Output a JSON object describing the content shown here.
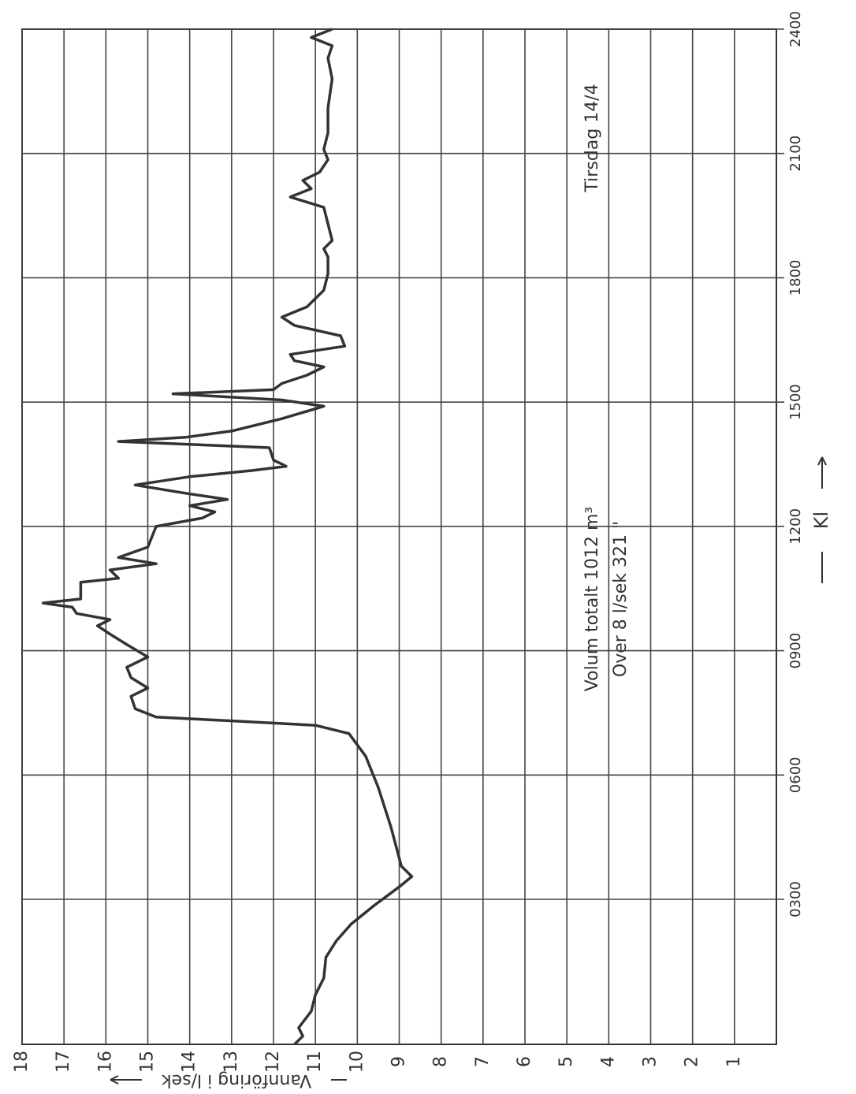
{
  "chart_data": {
    "type": "line",
    "axis_label": "Vannföring i l/sek",
    "time_label": "Kl",
    "annotations": [
      "Volum totalt 1012 m³",
      "Over 8 l/sek 321 \"",
      "Tirsdag 14/4"
    ],
    "xlim": [
      -0.5,
      24
    ],
    "xticks": [
      {
        "value": 3,
        "label": "0300"
      },
      {
        "value": 6,
        "label": "0600"
      },
      {
        "value": 9,
        "label": "0900"
      },
      {
        "value": 12,
        "label": "1200"
      },
      {
        "value": 15,
        "label": "1500"
      },
      {
        "value": 18,
        "label": "1800"
      },
      {
        "value": 21,
        "label": "2100"
      },
      {
        "value": 24,
        "label": "2400"
      }
    ],
    "ylim": [
      0,
      18
    ],
    "yticks": [
      1,
      2,
      3,
      4,
      5,
      6,
      7,
      8,
      9,
      10,
      11,
      12,
      13,
      14,
      15,
      16,
      17,
      18
    ],
    "grid": true,
    "color": "#333333",
    "x": [
      -0.5,
      -0.3,
      -0.1,
      0.3,
      0.7,
      1.1,
      1.6,
      2.0,
      2.4,
      2.85,
      3.3,
      3.55,
      3.8,
      4.75,
      5.7,
      6.45,
      7.0,
      7.2,
      7.3,
      7.4,
      7.6,
      7.9,
      8.1,
      8.35,
      8.6,
      8.85,
      9.15,
      9.4,
      9.6,
      9.75,
      9.9,
      10.05,
      10.15,
      10.25,
      10.4,
      10.65,
      10.75,
      10.95,
      11.1,
      11.25,
      11.5,
      11.75,
      12.0,
      12.2,
      12.35,
      12.5,
      12.65,
      12.8,
      13.0,
      13.2,
      13.35,
      13.45,
      13.6,
      13.9,
      14.05,
      14.15,
      14.3,
      14.6,
      14.9,
      15.05,
      15.2,
      15.3,
      15.45,
      15.65,
      15.85,
      16.0,
      16.15,
      16.35,
      16.6,
      16.85,
      17.05,
      17.3,
      17.7,
      18.1,
      18.5,
      18.7,
      18.9,
      19.3,
      19.7,
      19.95,
      20.15,
      20.35,
      20.55,
      20.85,
      21.1,
      21.5,
      22.1,
      22.8,
      23.3,
      23.6,
      23.8,
      24.0
    ],
    "values": [
      11.5,
      11.3,
      11.4,
      11.1,
      11.0,
      10.8,
      10.75,
      10.5,
      10.15,
      9.6,
      9.0,
      8.7,
      8.95,
      9.2,
      9.5,
      9.8,
      10.2,
      11.0,
      12.9,
      14.8,
      15.3,
      15.4,
      15.0,
      15.4,
      15.5,
      15.0,
      15.5,
      15.9,
      16.2,
      15.9,
      16.7,
      16.8,
      17.5,
      16.6,
      16.6,
      16.6,
      15.7,
      15.9,
      14.8,
      15.7,
      15.0,
      14.9,
      14.8,
      13.7,
      13.4,
      14.0,
      13.1,
      14.1,
      15.3,
      14.0,
      12.5,
      11.7,
      12.0,
      12.1,
      15.7,
      14.1,
      13.0,
      11.8,
      10.8,
      11.8,
      14.4,
      12.0,
      11.8,
      11.2,
      10.8,
      11.5,
      11.6,
      10.3,
      10.4,
      11.5,
      11.8,
      11.2,
      10.8,
      10.7,
      10.7,
      10.8,
      10.6,
      10.7,
      10.8,
      11.6,
      11.1,
      11.3,
      10.9,
      10.7,
      10.8,
      10.7,
      10.7,
      10.6,
      10.7,
      10.6,
      11.1,
      10.6
    ]
  }
}
